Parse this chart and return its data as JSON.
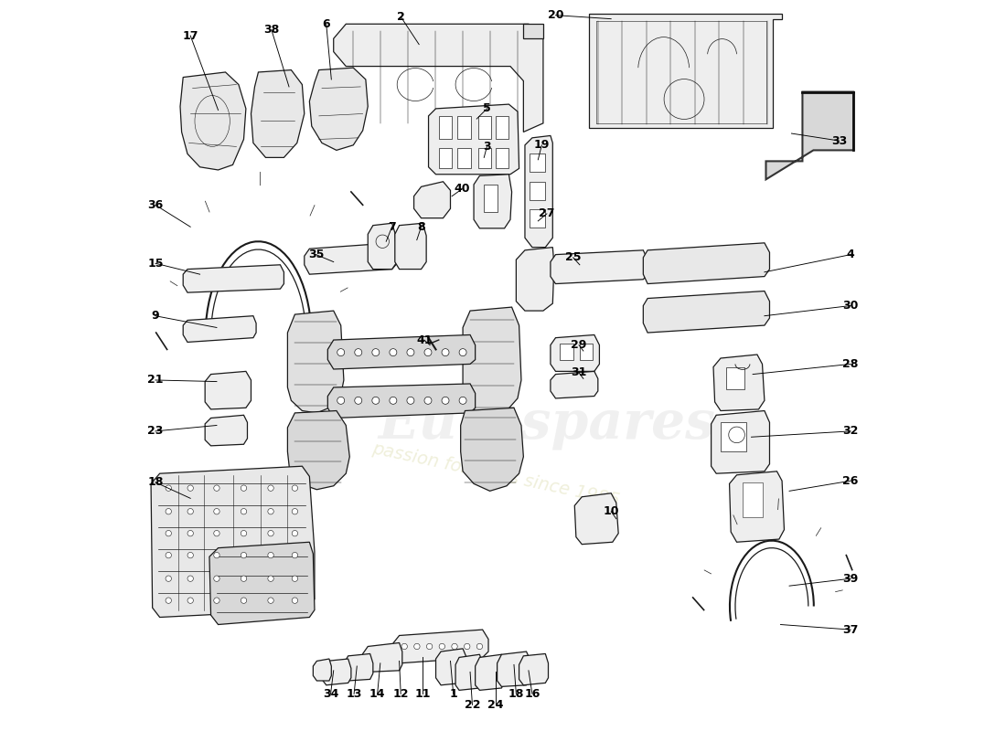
{
  "bg": "#ffffff",
  "lc": "#1a1a1a",
  "fc_light": "#f5f5f5",
  "fc_mid": "#e8e8e8",
  "wm1": "Eurospares",
  "wm2": "passion for parts since 1985",
  "label_fs": 9,
  "labels": [
    [
      17,
      0.072,
      0.048,
      0.11,
      0.15
    ],
    [
      38,
      0.183,
      0.04,
      0.207,
      0.118
    ],
    [
      6,
      0.258,
      0.032,
      0.265,
      0.108
    ],
    [
      2,
      0.36,
      0.022,
      0.385,
      0.06
    ],
    [
      20,
      0.572,
      0.02,
      0.648,
      0.025
    ],
    [
      33,
      0.96,
      0.192,
      0.895,
      0.182
    ],
    [
      5,
      0.478,
      0.148,
      0.464,
      0.162
    ],
    [
      3,
      0.478,
      0.2,
      0.474,
      0.215
    ],
    [
      40,
      0.444,
      0.258,
      0.43,
      0.268
    ],
    [
      36,
      0.024,
      0.28,
      0.072,
      0.31
    ],
    [
      15,
      0.024,
      0.36,
      0.085,
      0.375
    ],
    [
      7,
      0.348,
      0.31,
      0.34,
      0.33
    ],
    [
      8,
      0.388,
      0.31,
      0.382,
      0.328
    ],
    [
      35,
      0.244,
      0.348,
      0.268,
      0.358
    ],
    [
      19,
      0.553,
      0.198,
      0.548,
      0.218
    ],
    [
      27,
      0.56,
      0.292,
      0.548,
      0.302
    ],
    [
      25,
      0.596,
      0.352,
      0.605,
      0.362
    ],
    [
      4,
      0.976,
      0.348,
      0.858,
      0.372
    ],
    [
      30,
      0.976,
      0.418,
      0.858,
      0.432
    ],
    [
      9,
      0.024,
      0.432,
      0.108,
      0.448
    ],
    [
      21,
      0.024,
      0.52,
      0.108,
      0.522
    ],
    [
      41,
      0.392,
      0.465,
      0.4,
      0.472
    ],
    [
      29,
      0.604,
      0.472,
      0.61,
      0.48
    ],
    [
      31,
      0.604,
      0.51,
      0.61,
      0.518
    ],
    [
      28,
      0.976,
      0.498,
      0.842,
      0.512
    ],
    [
      23,
      0.024,
      0.59,
      0.108,
      0.582
    ],
    [
      32,
      0.976,
      0.59,
      0.84,
      0.598
    ],
    [
      18,
      0.024,
      0.66,
      0.072,
      0.682
    ],
    [
      26,
      0.976,
      0.658,
      0.892,
      0.672
    ],
    [
      10,
      0.648,
      0.7,
      0.655,
      0.71
    ],
    [
      34,
      0.264,
      0.95,
      0.268,
      0.918
    ],
    [
      13,
      0.296,
      0.95,
      0.3,
      0.912
    ],
    [
      14,
      0.328,
      0.95,
      0.332,
      0.908
    ],
    [
      12,
      0.36,
      0.95,
      0.358,
      0.905
    ],
    [
      11,
      0.39,
      0.95,
      0.39,
      0.9
    ],
    [
      1,
      0.432,
      0.95,
      0.428,
      0.905
    ],
    [
      22,
      0.458,
      0.965,
      0.455,
      0.92
    ],
    [
      24,
      0.49,
      0.965,
      0.49,
      0.92
    ],
    [
      18,
      0.518,
      0.95,
      0.515,
      0.91
    ],
    [
      16,
      0.54,
      0.95,
      0.535,
      0.918
    ],
    [
      37,
      0.976,
      0.862,
      0.88,
      0.855
    ],
    [
      39,
      0.976,
      0.792,
      0.892,
      0.802
    ]
  ]
}
